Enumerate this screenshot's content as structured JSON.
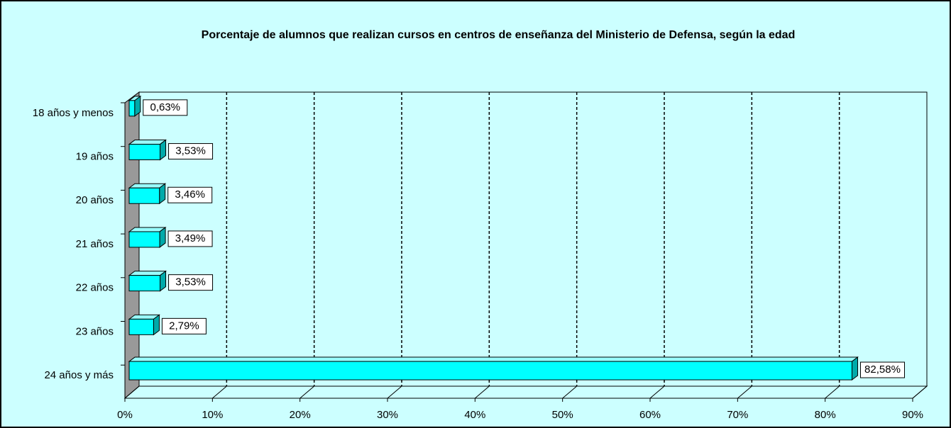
{
  "chart_data": {
    "type": "bar3d_horizontal",
    "title": "Porcentaje de alumnos que realizan cursos en centros de enseñanza del Ministerio de Defensa, según la edad",
    "categories": [
      "18 años y menos",
      "19 años",
      "20 años",
      "21 años",
      "22 años",
      "23 años",
      "24 años y más"
    ],
    "values": [
      0.63,
      3.53,
      3.46,
      3.49,
      3.53,
      2.79,
      82.58
    ],
    "value_labels": [
      "0,63%",
      "3,53%",
      "3,46%",
      "3,49%",
      "3,53%",
      "2,79%",
      "82,58%"
    ],
    "color": "#00ffff",
    "xlim": [
      0,
      90
    ],
    "xticks": [
      {
        "value": 0,
        "label": "0%"
      },
      {
        "value": 10,
        "label": "10%"
      },
      {
        "value": 20,
        "label": "20%"
      },
      {
        "value": 30,
        "label": "30%"
      },
      {
        "value": 40,
        "label": "40%"
      },
      {
        "value": 50,
        "label": "50%"
      },
      {
        "value": 60,
        "label": "60%"
      },
      {
        "value": 70,
        "label": "70%"
      },
      {
        "value": 80,
        "label": "80%"
      },
      {
        "value": 90,
        "label": "90%"
      }
    ],
    "grid": true
  }
}
